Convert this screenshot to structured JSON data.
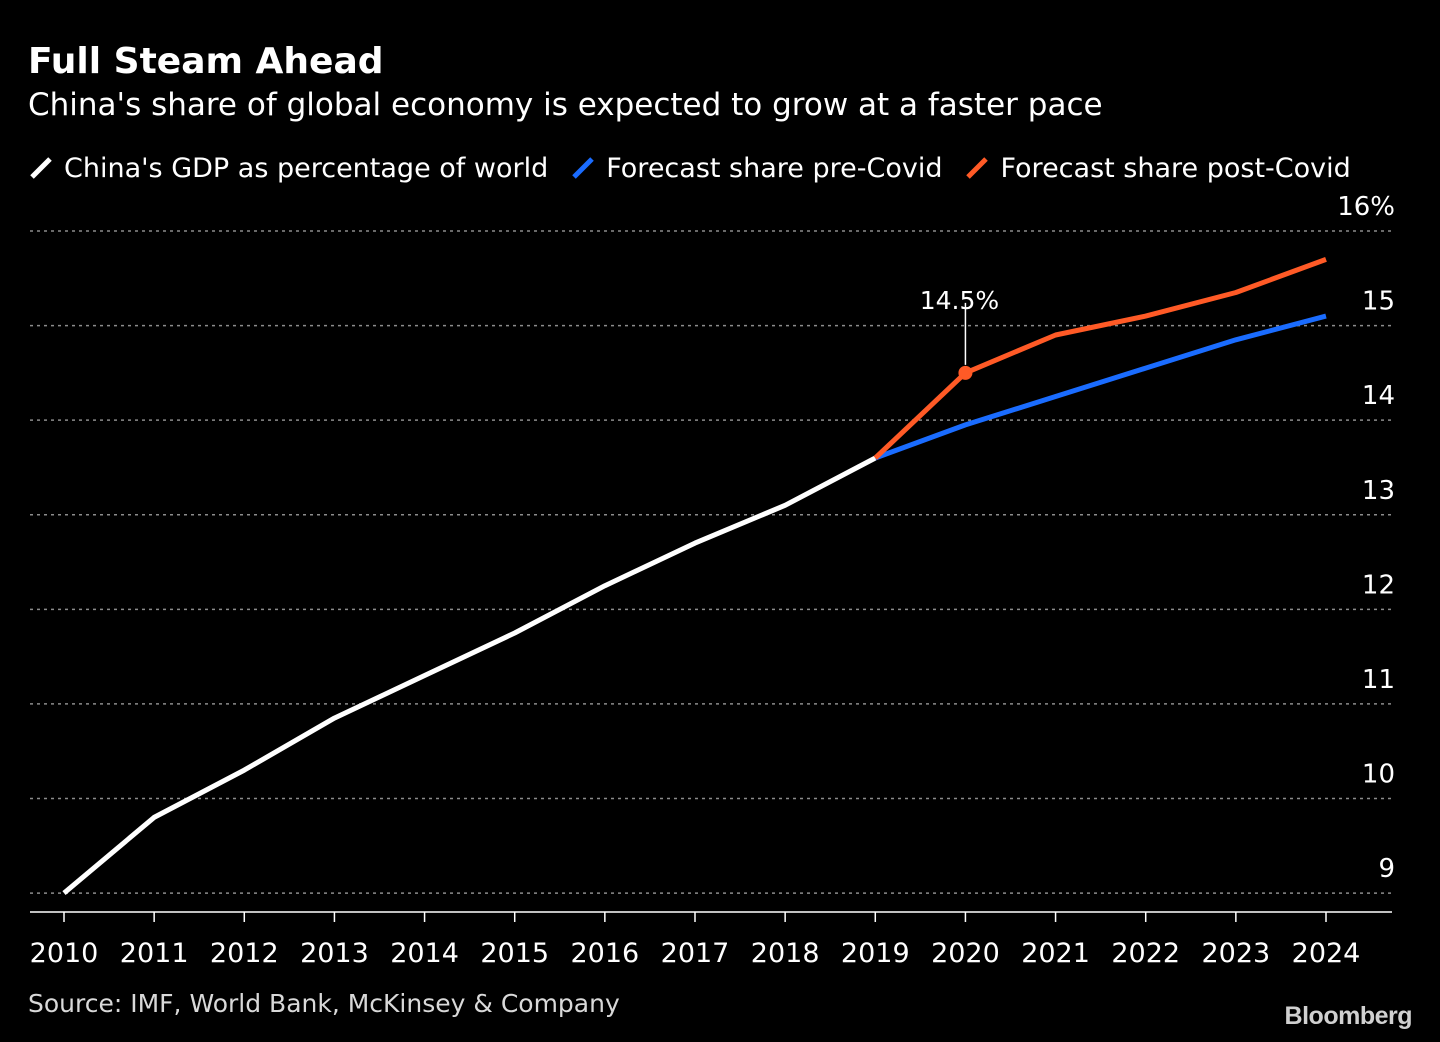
{
  "header": {
    "title": "Full Steam Ahead",
    "subtitle": "China's share of global economy is expected to grow at a faster pace"
  },
  "legend": {
    "items": [
      {
        "label": "China's GDP as percentage of world",
        "color": "#ffffff"
      },
      {
        "label": "Forecast share pre-Covid",
        "color": "#1a6cff"
      },
      {
        "label": "Forecast share post-Covid",
        "color": "#ff5a26"
      }
    ]
  },
  "footer": {
    "source": "Source: IMF, World Bank, McKinsey & Company",
    "brand": "Bloomberg"
  },
  "colors": {
    "background": "#000000",
    "history": "#ffffff",
    "pre_covid": "#1a6cff",
    "post_covid": "#ff5a26",
    "grid": "#8c8c8c",
    "axis_text": "#ffffff"
  },
  "chart_data": {
    "type": "line",
    "title": "Full Steam Ahead",
    "subtitle": "China's share of global economy is expected to grow at a faster pace",
    "x": [
      2010,
      2011,
      2012,
      2013,
      2014,
      2015,
      2016,
      2017,
      2018,
      2019,
      2020,
      2021,
      2022,
      2023,
      2024
    ],
    "x_tick_labels": [
      "2010",
      "2011",
      "2012",
      "2013",
      "2014",
      "2015",
      "2016",
      "2017",
      "2018",
      "2019",
      "2020",
      "2021",
      "2022",
      "2023",
      "2024"
    ],
    "y_tick_labels": [
      {
        "value": 9,
        "label": "9"
      },
      {
        "value": 10,
        "label": "10"
      },
      {
        "value": 11,
        "label": "11"
      },
      {
        "value": 12,
        "label": "12"
      },
      {
        "value": 13,
        "label": "13"
      },
      {
        "value": 14,
        "label": "14"
      },
      {
        "value": 15,
        "label": "15"
      },
      {
        "value": 16,
        "label": "16%"
      }
    ],
    "ylim": [
      8.8,
      16.0
    ],
    "y_axis_side": "right",
    "grid": "horizontal dotted",
    "legend_position": "top-left",
    "series": [
      {
        "name": "China's GDP as percentage of world",
        "x": [
          2010,
          2011,
          2012,
          2013,
          2014,
          2015,
          2016,
          2017,
          2018,
          2019
        ],
        "values": [
          9.0,
          9.8,
          10.3,
          10.85,
          11.3,
          11.75,
          12.25,
          12.7,
          13.1,
          13.6
        ]
      },
      {
        "name": "Forecast share pre-Covid",
        "x": [
          2019,
          2020,
          2021,
          2022,
          2023,
          2024
        ],
        "values": [
          13.6,
          13.95,
          14.25,
          14.55,
          14.85,
          15.1
        ]
      },
      {
        "name": "Forecast share post-Covid",
        "x": [
          2019,
          2020,
          2021,
          2022,
          2023,
          2024
        ],
        "values": [
          13.6,
          14.5,
          14.9,
          15.1,
          15.35,
          15.7
        ]
      }
    ],
    "annotations": [
      {
        "x": 2020,
        "y": 14.5,
        "label": "14.5%",
        "series": "Forecast share post-Covid"
      }
    ]
  }
}
